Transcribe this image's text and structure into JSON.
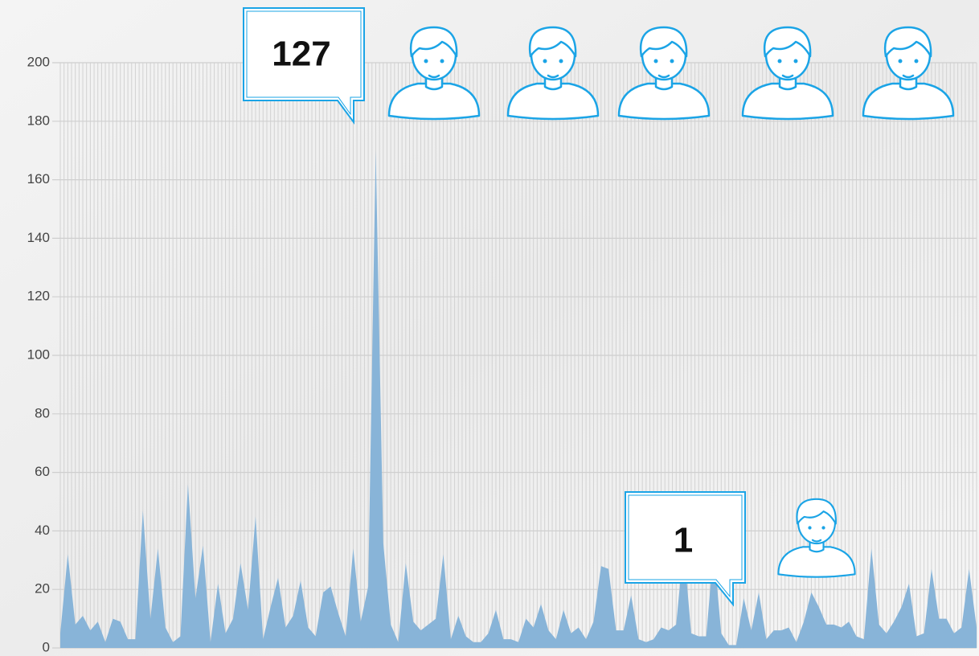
{
  "chart_data": {
    "type": "area",
    "values": [
      5,
      32,
      8,
      11,
      6,
      9,
      2,
      10,
      9,
      3,
      3,
      47,
      10,
      34,
      7,
      2,
      4,
      56,
      17,
      35,
      2,
      22,
      5,
      10,
      29,
      13,
      45,
      3,
      14,
      24,
      7,
      11,
      23,
      7,
      4,
      19,
      21,
      12,
      4,
      34,
      9,
      21,
      170,
      36,
      8,
      2,
      29,
      9,
      6,
      8,
      10,
      32,
      3,
      11,
      4,
      2,
      2,
      5,
      13,
      3,
      3,
      2,
      10,
      7,
      15,
      6,
      3,
      13,
      5,
      7,
      3,
      9,
      28,
      27,
      6,
      6,
      18,
      3,
      2,
      3,
      7,
      6,
      8,
      35,
      5,
      4,
      4,
      34,
      5,
      1,
      1,
      17,
      6,
      19,
      3,
      6,
      6,
      7,
      2,
      9,
      19,
      14,
      8,
      8,
      7,
      9,
      4,
      3,
      34,
      8,
      5,
      9,
      14,
      22,
      4,
      5,
      27,
      10,
      10,
      5,
      7,
      27,
      7
    ],
    "color": "#88b4d8",
    "ylim": [
      0,
      200
    ],
    "yticks": [
      0,
      20,
      40,
      60,
      80,
      100,
      120,
      140,
      160,
      180,
      200
    ],
    "grid": true,
    "annotations": [
      {
        "text": "127"
      },
      {
        "text": "1"
      }
    ]
  }
}
